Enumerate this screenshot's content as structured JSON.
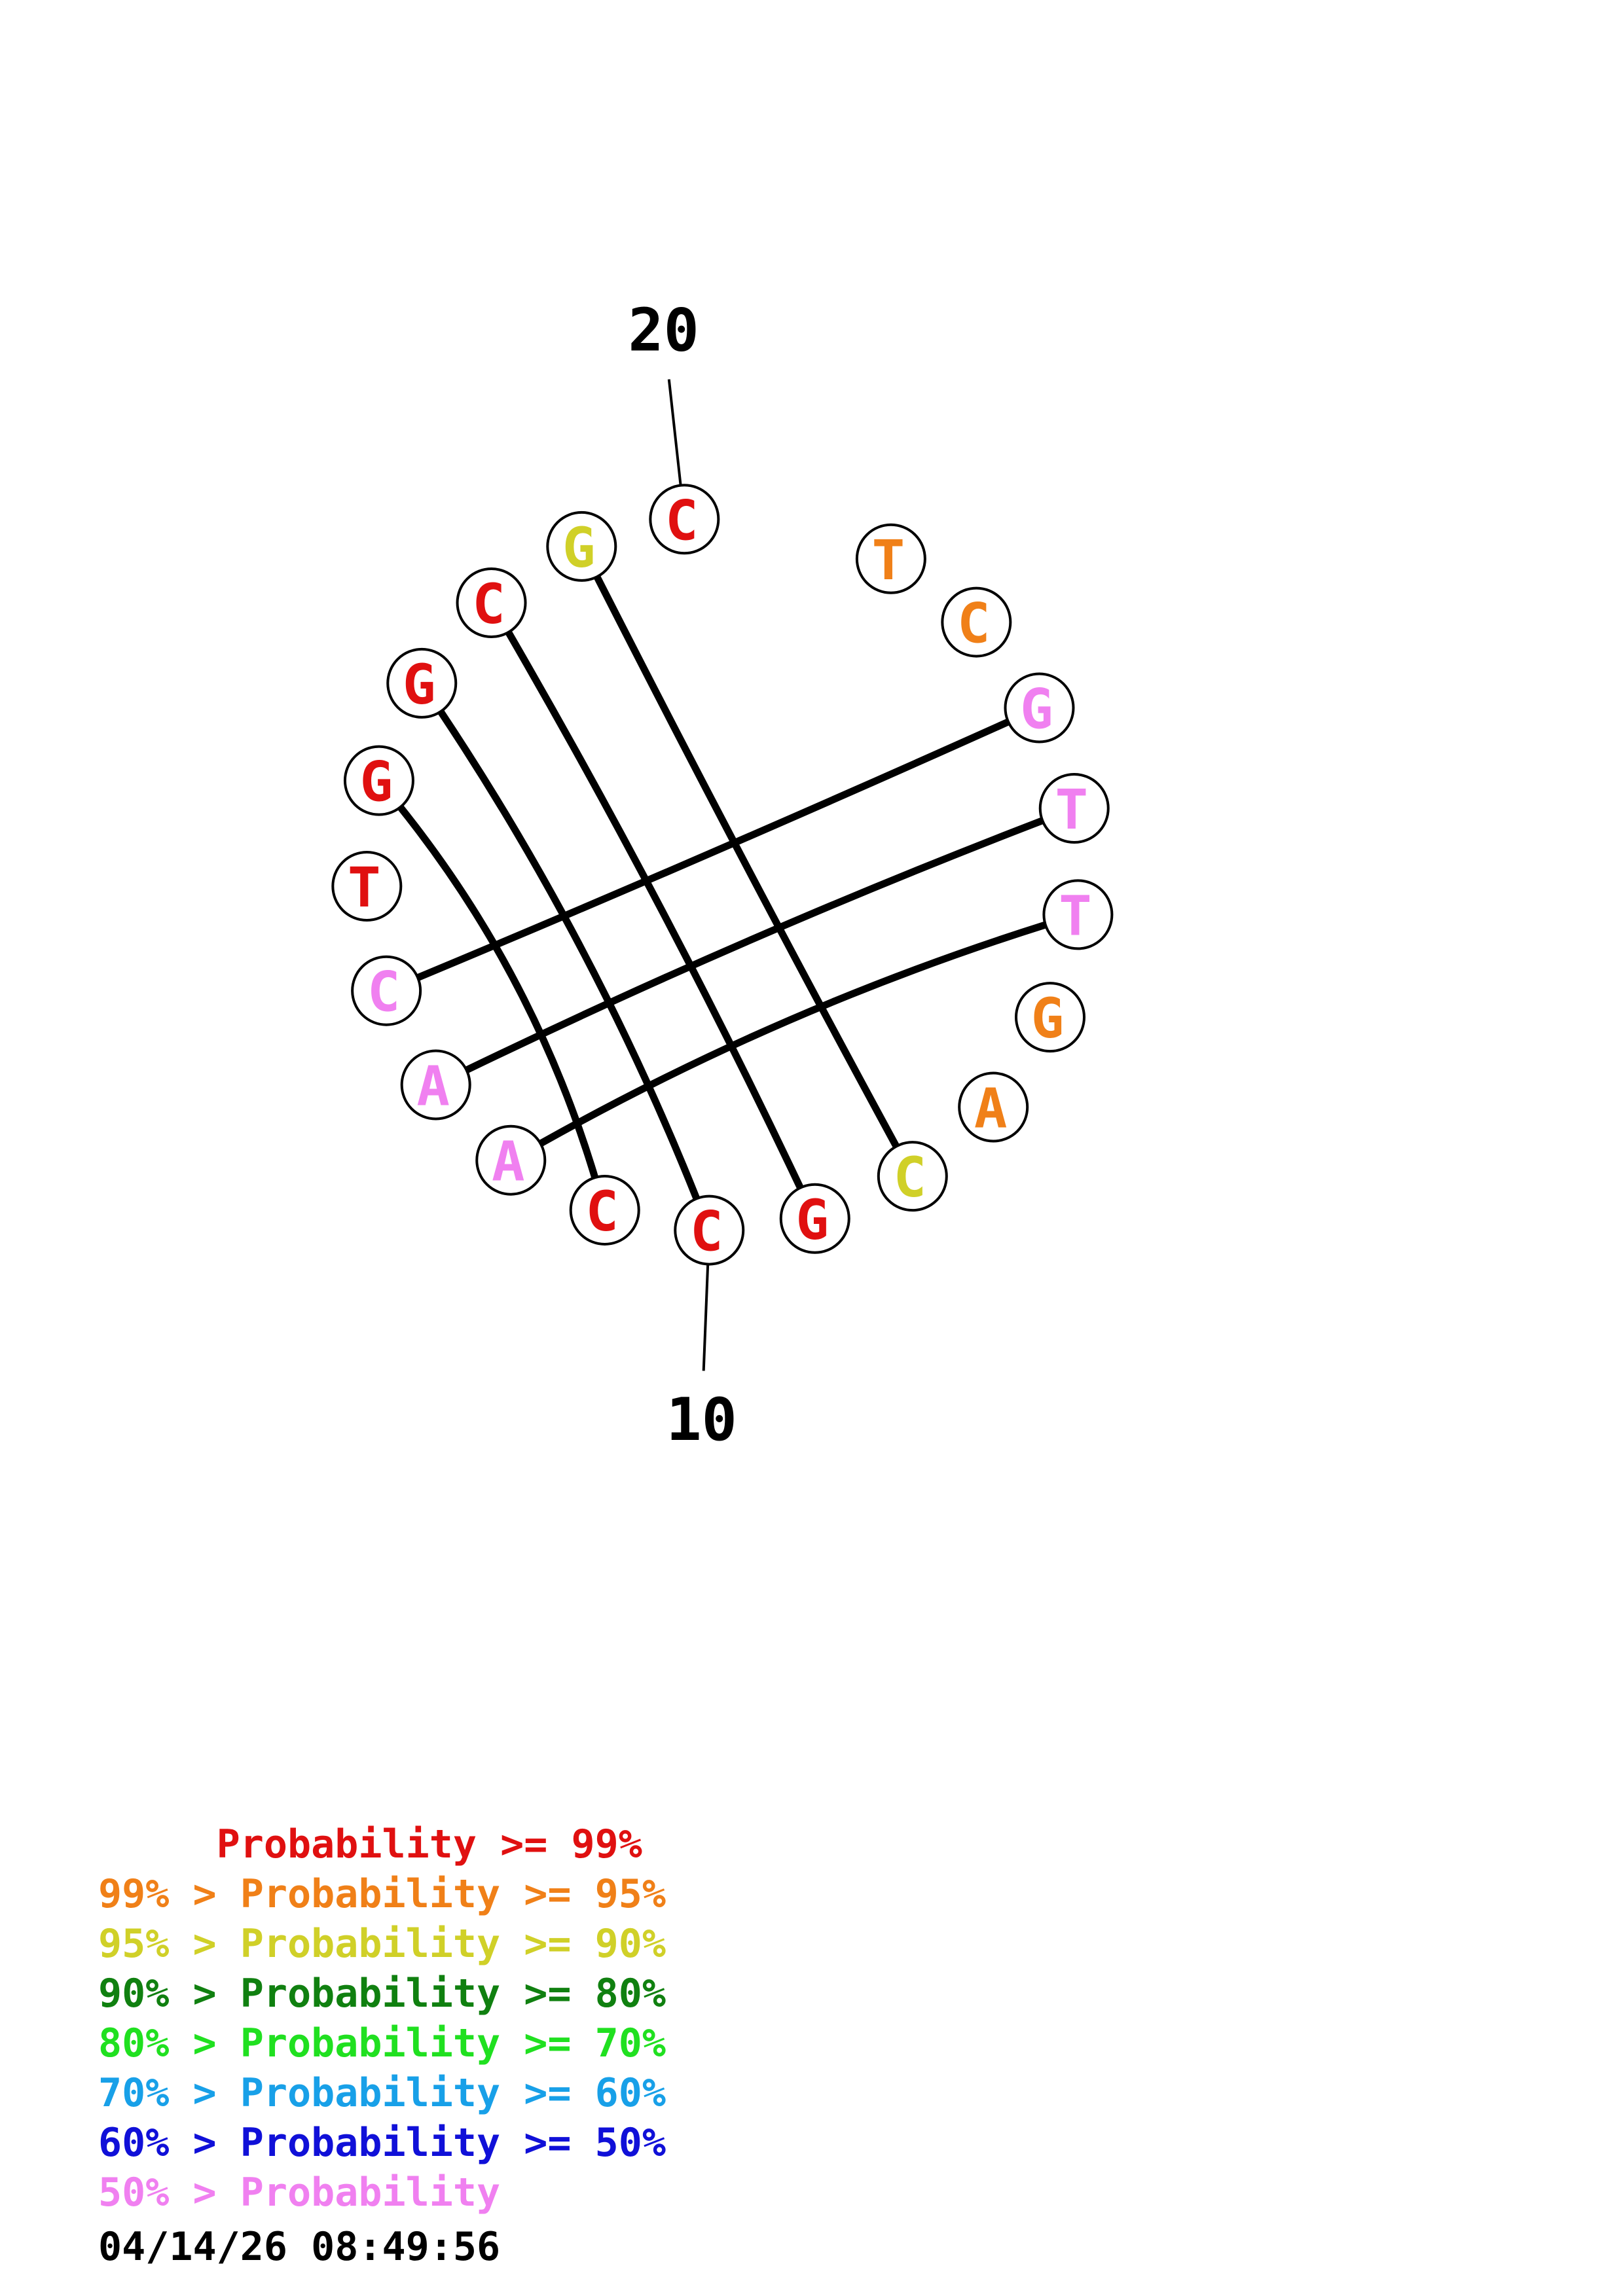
{
  "structure": {
    "nucleotides": [
      {
        "index": 1,
        "base": "T",
        "color": "#f08018"
      },
      {
        "index": 2,
        "base": "C",
        "color": "#f08018"
      },
      {
        "index": 3,
        "base": "G",
        "color": "#f080f0"
      },
      {
        "index": 4,
        "base": "T",
        "color": "#f080f0"
      },
      {
        "index": 5,
        "base": "T",
        "color": "#f080f0"
      },
      {
        "index": 6,
        "base": "G",
        "color": "#f08018"
      },
      {
        "index": 7,
        "base": "A",
        "color": "#f08018"
      },
      {
        "index": 8,
        "base": "C",
        "color": "#d0d028"
      },
      {
        "index": 9,
        "base": "G",
        "color": "#e01010"
      },
      {
        "index": 10,
        "base": "C",
        "color": "#e01010"
      },
      {
        "index": 11,
        "base": "C",
        "color": "#e01010"
      },
      {
        "index": 12,
        "base": "A",
        "color": "#f080f0"
      },
      {
        "index": 13,
        "base": "A",
        "color": "#f080f0"
      },
      {
        "index": 14,
        "base": "C",
        "color": "#f080f0"
      },
      {
        "index": 15,
        "base": "T",
        "color": "#e01010"
      },
      {
        "index": 16,
        "base": "G",
        "color": "#e01010"
      },
      {
        "index": 17,
        "base": "G",
        "color": "#e01010"
      },
      {
        "index": 18,
        "base": "C",
        "color": "#e01010"
      },
      {
        "index": 19,
        "base": "G",
        "color": "#d0d028"
      },
      {
        "index": 20,
        "base": "C",
        "color": "#e01010"
      }
    ],
    "pairs": [
      [
        3,
        14
      ],
      [
        4,
        13
      ],
      [
        5,
        12
      ],
      [
        8,
        19
      ],
      [
        9,
        18
      ],
      [
        10,
        17
      ],
      [
        11,
        16
      ]
    ],
    "position_labels": [
      {
        "index": 10,
        "text": "10"
      },
      {
        "index": 20,
        "text": "20"
      }
    ]
  },
  "legend": [
    {
      "text": "     Probability >= 99%",
      "color": "#e01010"
    },
    {
      "text": "99% > Probability >= 95%",
      "color": "#f08018"
    },
    {
      "text": "95% > Probability >= 90%",
      "color": "#d0d028"
    },
    {
      "text": "90% > Probability >= 80%",
      "color": "#108010"
    },
    {
      "text": "80% > Probability >= 70%",
      "color": "#20e020"
    },
    {
      "text": "70% > Probability >= 60%",
      "color": "#18a0e8"
    },
    {
      "text": "60% > Probability >= 50%",
      "color": "#1010d8"
    },
    {
      "text": "50% > Probability",
      "color": "#f080f0"
    }
  ],
  "timestamp": "04/14/26 08:49:56"
}
